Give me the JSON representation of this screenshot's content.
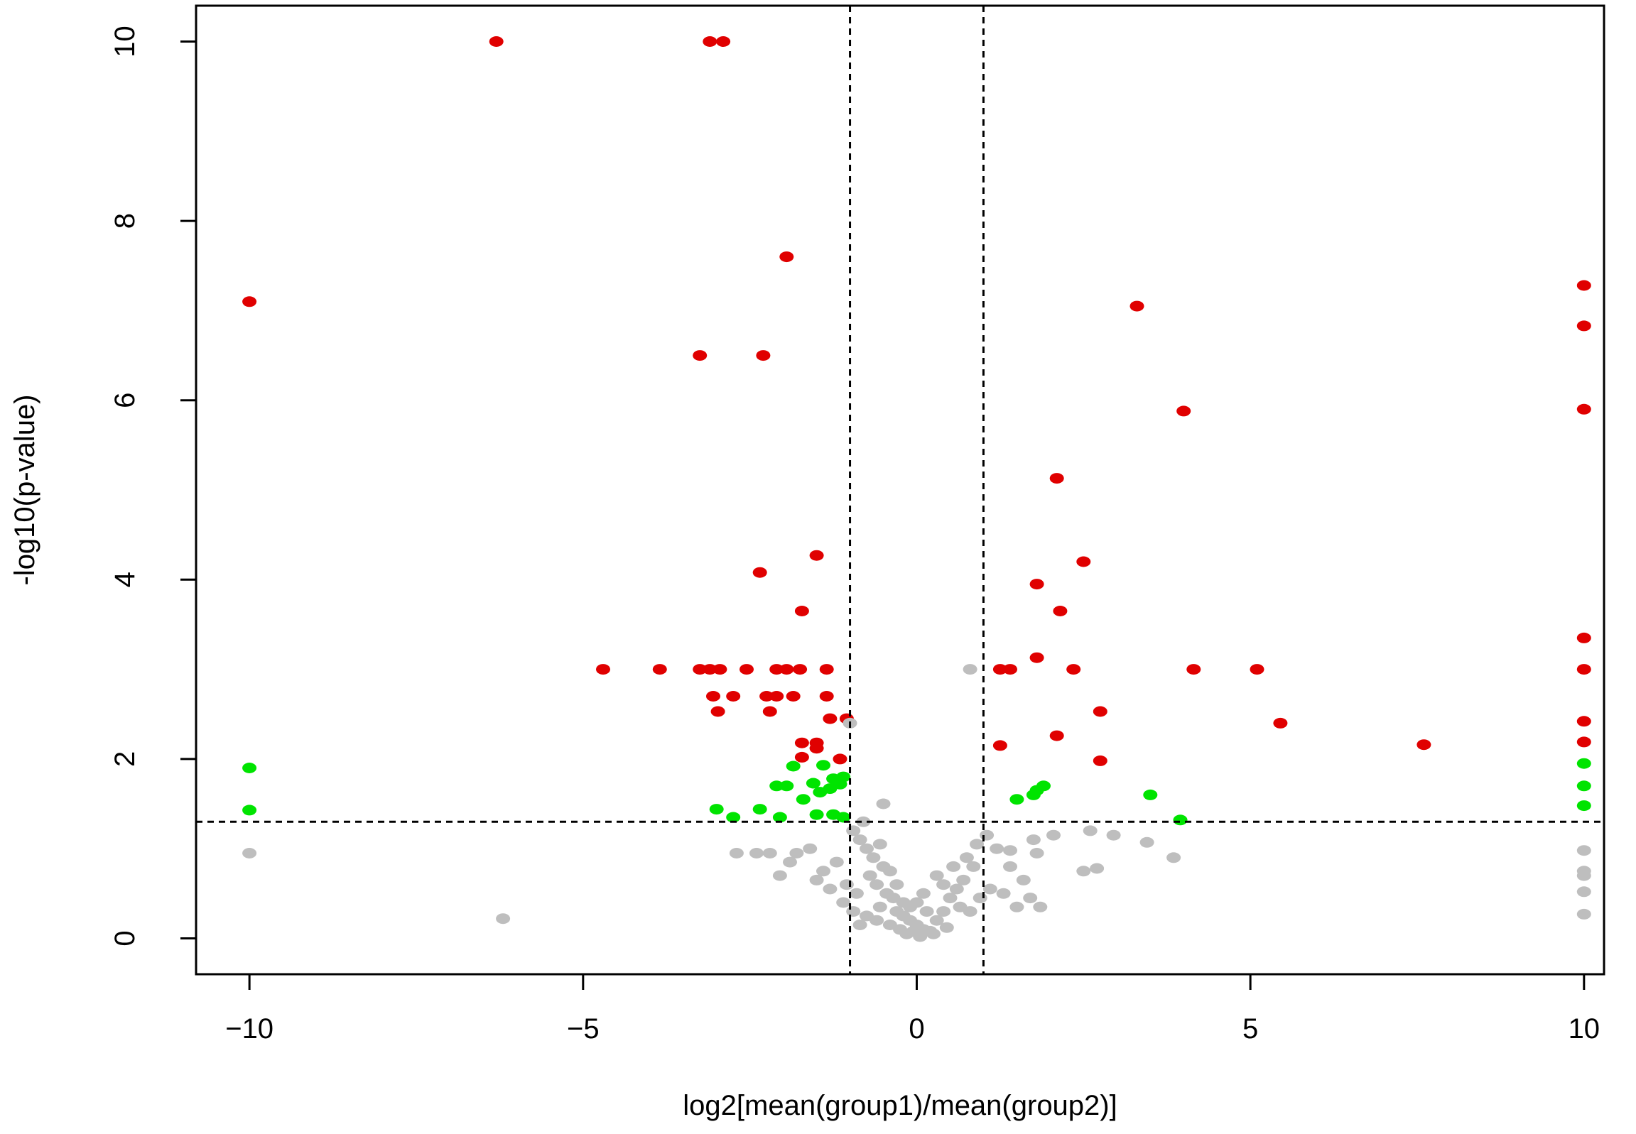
{
  "chart_data": {
    "type": "scatter",
    "title": "",
    "xlabel": "log2[mean(group1)/mean(group2)]",
    "ylabel": "-log10(p-value)",
    "xlim": [
      -10.8,
      10.3
    ],
    "ylim": [
      -0.4,
      10.4
    ],
    "xticks": [
      -10,
      -5,
      0,
      5,
      10
    ],
    "xtick_labels": [
      "−10",
      "−5",
      "0",
      "5",
      "10"
    ],
    "yticks": [
      0,
      2,
      4,
      6,
      8,
      10
    ],
    "ytick_labels": [
      "0",
      "2",
      "4",
      "6",
      "8",
      "10"
    ],
    "grid": false,
    "legend": "none",
    "thresholds": {
      "x": [
        -1,
        1
      ],
      "y": 1.3
    },
    "colors": {
      "up_or_down_significant": "#e00000",
      "moderate": "#00e400",
      "not_significant": "#bebebe",
      "threshold_line": "#000000"
    },
    "series": [
      {
        "color": "#e00000",
        "points": [
          [
            -6.3,
            10.0
          ],
          [
            -3.1,
            10.0
          ],
          [
            -2.9,
            10.0
          ],
          [
            -10.0,
            7.1
          ],
          [
            -1.95,
            7.6
          ],
          [
            -3.25,
            6.5
          ],
          [
            -2.3,
            6.5
          ],
          [
            -1.5,
            4.27
          ],
          [
            -2.35,
            4.08
          ],
          [
            -1.72,
            3.65
          ],
          [
            -4.7,
            3.0
          ],
          [
            -3.85,
            3.0
          ],
          [
            -3.25,
            3.0
          ],
          [
            -3.1,
            3.0
          ],
          [
            -2.95,
            3.0
          ],
          [
            -2.55,
            3.0
          ],
          [
            -2.1,
            3.0
          ],
          [
            -1.95,
            3.0
          ],
          [
            -1.75,
            3.0
          ],
          [
            -1.35,
            3.0
          ],
          [
            -3.05,
            2.7
          ],
          [
            -2.75,
            2.7
          ],
          [
            -2.25,
            2.7
          ],
          [
            -2.1,
            2.7
          ],
          [
            -1.85,
            2.7
          ],
          [
            -1.35,
            2.7
          ],
          [
            -2.98,
            2.53
          ],
          [
            -2.2,
            2.53
          ],
          [
            -1.3,
            2.45
          ],
          [
            -1.05,
            2.45
          ],
          [
            -1.72,
            2.18
          ],
          [
            -1.5,
            2.18
          ],
          [
            -1.5,
            2.12
          ],
          [
            -1.72,
            2.02
          ],
          [
            -1.15,
            2.0
          ],
          [
            3.3,
            7.05
          ],
          [
            4.0,
            5.88
          ],
          [
            2.1,
            5.13
          ],
          [
            2.5,
            4.2
          ],
          [
            1.8,
            3.95
          ],
          [
            2.15,
            3.65
          ],
          [
            1.8,
            3.13
          ],
          [
            1.25,
            3.0
          ],
          [
            1.4,
            3.0
          ],
          [
            2.35,
            3.0
          ],
          [
            4.15,
            3.0
          ],
          [
            5.1,
            3.0
          ],
          [
            2.75,
            2.53
          ],
          [
            5.45,
            2.4
          ],
          [
            2.1,
            2.26
          ],
          [
            1.25,
            2.15
          ],
          [
            7.6,
            2.16
          ],
          [
            2.75,
            1.98
          ],
          [
            10.0,
            7.28
          ],
          [
            10.0,
            6.83
          ],
          [
            10.0,
            5.9
          ],
          [
            10.0,
            3.35
          ],
          [
            10.0,
            3.0
          ],
          [
            10.0,
            2.42
          ],
          [
            10.0,
            2.19
          ]
        ]
      },
      {
        "color": "#00e400",
        "points": [
          [
            -10.0,
            1.9
          ],
          [
            -10.0,
            1.43
          ],
          [
            -1.85,
            1.92
          ],
          [
            -1.4,
            1.93
          ],
          [
            -1.1,
            1.8
          ],
          [
            -1.25,
            1.78
          ],
          [
            -1.55,
            1.73
          ],
          [
            -1.15,
            1.72
          ],
          [
            -2.1,
            1.7
          ],
          [
            -1.95,
            1.7
          ],
          [
            -1.3,
            1.67
          ],
          [
            -1.45,
            1.63
          ],
          [
            -1.7,
            1.55
          ],
          [
            -3.0,
            1.44
          ],
          [
            -2.35,
            1.44
          ],
          [
            -1.5,
            1.38
          ],
          [
            -1.25,
            1.38
          ],
          [
            -1.1,
            1.35
          ],
          [
            -2.75,
            1.35
          ],
          [
            -2.05,
            1.35
          ],
          [
            1.9,
            1.7
          ],
          [
            1.8,
            1.65
          ],
          [
            1.75,
            1.6
          ],
          [
            1.5,
            1.55
          ],
          [
            3.5,
            1.6
          ],
          [
            3.95,
            1.32
          ],
          [
            10.0,
            1.95
          ],
          [
            10.0,
            1.7
          ],
          [
            10.0,
            1.48
          ]
        ]
      },
      {
        "color": "#bebebe",
        "points": [
          [
            -10.0,
            0.95
          ],
          [
            -6.2,
            0.22
          ],
          [
            0.8,
            3.0
          ],
          [
            -1.0,
            2.4
          ],
          [
            -2.7,
            0.95
          ],
          [
            -2.4,
            0.95
          ],
          [
            -2.2,
            0.95
          ],
          [
            -1.8,
            0.95
          ],
          [
            -1.6,
            1.0
          ],
          [
            -1.9,
            0.85
          ],
          [
            -2.05,
            0.7
          ],
          [
            -1.4,
            0.75
          ],
          [
            -1.2,
            0.85
          ],
          [
            -1.5,
            0.65
          ],
          [
            -1.3,
            0.55
          ],
          [
            -1.1,
            0.4
          ],
          [
            -0.95,
            1.2
          ],
          [
            -0.85,
            1.1
          ],
          [
            -0.75,
            1.0
          ],
          [
            -0.65,
            0.9
          ],
          [
            -0.5,
            0.8
          ],
          [
            -0.7,
            0.7
          ],
          [
            -0.5,
            1.5
          ],
          [
            -0.8,
            1.3
          ],
          [
            -0.6,
            0.6
          ],
          [
            -0.45,
            0.5
          ],
          [
            -0.35,
            0.45
          ],
          [
            -0.55,
            0.35
          ],
          [
            -0.3,
            0.3
          ],
          [
            -0.2,
            0.25
          ],
          [
            -0.1,
            0.2
          ],
          [
            0.0,
            0.15
          ],
          [
            0.1,
            0.1
          ],
          [
            0.2,
            0.08
          ],
          [
            -0.4,
            0.15
          ],
          [
            -0.25,
            0.1
          ],
          [
            -0.15,
            0.05
          ],
          [
            0.05,
            0.02
          ],
          [
            0.3,
            0.2
          ],
          [
            0.4,
            0.3
          ],
          [
            0.5,
            0.45
          ],
          [
            0.6,
            0.55
          ],
          [
            0.7,
            0.65
          ],
          [
            0.55,
            0.8
          ],
          [
            0.75,
            0.9
          ],
          [
            0.9,
            1.05
          ],
          [
            0.85,
            0.8
          ],
          [
            0.65,
            0.35
          ],
          [
            0.45,
            0.12
          ],
          [
            0.25,
            0.05
          ],
          [
            -0.05,
            0.08
          ],
          [
            0.15,
            0.3
          ],
          [
            -0.6,
            0.2
          ],
          [
            -0.85,
            0.15
          ],
          [
            -0.95,
            0.3
          ],
          [
            -1.05,
            0.6
          ],
          [
            -0.9,
            0.5
          ],
          [
            -0.75,
            0.25
          ],
          [
            0.8,
            0.3
          ],
          [
            0.95,
            0.45
          ],
          [
            1.1,
            0.55
          ],
          [
            1.3,
            0.5
          ],
          [
            1.5,
            0.35
          ],
          [
            1.7,
            0.45
          ],
          [
            1.85,
            0.35
          ],
          [
            1.6,
            0.65
          ],
          [
            1.4,
            0.8
          ],
          [
            1.2,
            1.0
          ],
          [
            1.05,
            1.15
          ],
          [
            1.4,
            0.98
          ],
          [
            1.75,
            1.1
          ],
          [
            1.8,
            0.95
          ],
          [
            2.05,
            1.15
          ],
          [
            2.5,
            0.75
          ],
          [
            2.7,
            0.78
          ],
          [
            2.95,
            1.15
          ],
          [
            3.45,
            1.07
          ],
          [
            3.85,
            0.9
          ],
          [
            2.6,
            1.2
          ],
          [
            0.4,
            0.6
          ],
          [
            0.3,
            0.7
          ],
          [
            -0.3,
            0.6
          ],
          [
            -0.2,
            0.4
          ],
          [
            -0.1,
            0.35
          ],
          [
            0.0,
            0.4
          ],
          [
            0.1,
            0.5
          ],
          [
            -0.4,
            0.75
          ],
          [
            -0.55,
            1.05
          ],
          [
            10.0,
            0.98
          ],
          [
            10.0,
            0.75
          ],
          [
            10.0,
            0.7
          ],
          [
            10.0,
            0.52
          ],
          [
            10.0,
            0.27
          ]
        ]
      }
    ]
  }
}
